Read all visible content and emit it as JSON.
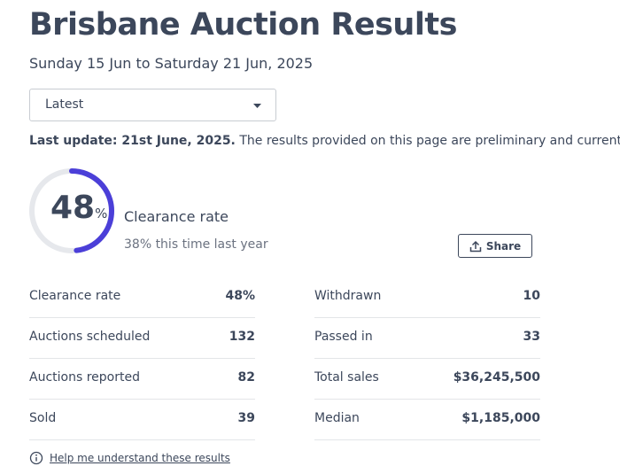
{
  "header": {
    "title": "Brisbane Auction Results",
    "date_range": "Sunday 15 Jun to Saturday 21 Jun, 2025"
  },
  "dropdown": {
    "selected": "Latest"
  },
  "update_note": {
    "bold": "Last update: 21st June, 2025.",
    "text": "The results provided on this page are preliminary and current at the time"
  },
  "gauge": {
    "value": 48,
    "unit": "%",
    "label": "Clearance rate",
    "comparison": "38% this time last year"
  },
  "share_button": "Share",
  "stats": {
    "left": [
      [
        "Clearance rate",
        "48%"
      ],
      [
        "Auctions scheduled",
        "132"
      ],
      [
        "Auctions reported",
        "82"
      ],
      [
        "Sold",
        "39"
      ]
    ],
    "right": [
      [
        "Withdrawn",
        "10"
      ],
      [
        "Passed in",
        "33"
      ],
      [
        "Total sales",
        "$36,245,500"
      ],
      [
        "Median",
        "$1,185,000"
      ]
    ]
  },
  "help_link": "Help me understand these results"
}
